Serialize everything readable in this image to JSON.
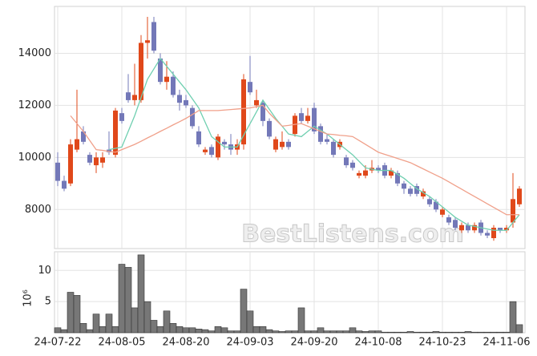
{
  "chart_data": {
    "type": "candlestick",
    "categories": [
      "24-07-22",
      null,
      null,
      null,
      null,
      null,
      null,
      null,
      null,
      null,
      "24-08-05",
      null,
      null,
      null,
      null,
      null,
      null,
      null,
      null,
      null,
      "24-08-20",
      null,
      null,
      null,
      null,
      null,
      null,
      null,
      null,
      null,
      "24-09-03",
      null,
      null,
      null,
      null,
      null,
      null,
      null,
      null,
      null,
      "24-09-20",
      null,
      null,
      null,
      null,
      null,
      null,
      null,
      null,
      null,
      "24-10-08",
      null,
      null,
      null,
      null,
      null,
      null,
      null,
      null,
      null,
      "24-10-23",
      null,
      null,
      null,
      null,
      null,
      null,
      null,
      null,
      null,
      "24-11-06",
      null,
      null
    ],
    "open": [
      9800,
      9100,
      9000,
      10300,
      11000,
      10100,
      9700,
      9800,
      10300,
      10100,
      11700,
      12500,
      12200,
      12200,
      14400,
      15200,
      13800,
      12900,
      13100,
      12400,
      12200,
      11900,
      11000,
      10200,
      10400,
      10000,
      10600,
      10500,
      10300,
      10500,
      12900,
      12000,
      12100,
      11400,
      10300,
      10400,
      10600,
      10900,
      11700,
      11400,
      11900,
      11200,
      10700,
      10600,
      10400,
      10000,
      9800,
      9300,
      9300,
      9500,
      9600,
      9700,
      9300,
      9400,
      9000,
      8800,
      8900,
      8500,
      8400,
      8300,
      7800,
      7700,
      7600,
      7200,
      7400,
      7200,
      7500,
      7100,
      6900,
      7300,
      7200,
      7500,
      8200
    ],
    "high": [
      10200,
      9300,
      10700,
      12600,
      11200,
      10200,
      10200,
      10200,
      11000,
      11900,
      11900,
      13200,
      13600,
      14700,
      15400,
      15400,
      14000,
      13700,
      13300,
      12600,
      12400,
      12000,
      11200,
      10400,
      10500,
      10900,
      10700,
      10900,
      10700,
      13200,
      13900,
      12600,
      12200,
      11500,
      10800,
      11000,
      10700,
      11700,
      11900,
      11900,
      12100,
      11300,
      10900,
      10700,
      10700,
      10100,
      9900,
      9500,
      9700,
      9900,
      9700,
      9800,
      9600,
      9500,
      9100,
      8900,
      9000,
      8800,
      8500,
      8400,
      8100,
      7800,
      7700,
      7500,
      7500,
      7500,
      7600,
      7200,
      7400,
      7300,
      7400,
      9400,
      8900
    ],
    "low": [
      8900,
      8700,
      8900,
      10200,
      10500,
      9700,
      9400,
      9600,
      10100,
      10000,
      11300,
      12100,
      12000,
      12100,
      13800,
      14000,
      12800,
      12600,
      12300,
      11800,
      11900,
      11100,
      10400,
      10100,
      10000,
      9900,
      10300,
      10100,
      10100,
      10300,
      12400,
      11900,
      11200,
      10700,
      10200,
      10300,
      10300,
      10800,
      11300,
      11300,
      10900,
      10500,
      10500,
      10000,
      10300,
      9600,
      9500,
      9200,
      9200,
      9400,
      9400,
      9200,
      9200,
      8900,
      8600,
      8500,
      8500,
      8400,
      8100,
      7900,
      7700,
      7400,
      7200,
      7100,
      7100,
      7100,
      7000,
      6900,
      6800,
      7100,
      7100,
      7300,
      8100
    ],
    "close": [
      9100,
      8800,
      10500,
      10700,
      10600,
      9800,
      10000,
      10000,
      10200,
      11800,
      11400,
      12200,
      12400,
      14400,
      14500,
      14100,
      12900,
      13100,
      12400,
      12100,
      12000,
      11200,
      10500,
      10300,
      10100,
      10800,
      10500,
      10300,
      10500,
      13000,
      12500,
      12200,
      11400,
      10800,
      10700,
      10600,
      10400,
      11600,
      11400,
      11600,
      11000,
      10600,
      10600,
      10100,
      10600,
      9700,
      9600,
      9400,
      9500,
      9600,
      9500,
      9300,
      9500,
      9000,
      8800,
      8600,
      8600,
      8700,
      8200,
      8000,
      8000,
      7500,
      7300,
      7400,
      7200,
      7400,
      7100,
      7000,
      7300,
      7200,
      7300,
      8400,
      8800
    ],
    "up_color": "#e0481a",
    "down_color": "#7378b8",
    "lines": [
      {
        "color": "#6fcfb0",
        "values": [
          null,
          null,
          null,
          null,
          null,
          null,
          null,
          null,
          10300,
          10350,
          10400,
          11000,
          11600,
          12300,
          13000,
          13400,
          13800,
          13500,
          13200,
          12900,
          12600,
          12250,
          11900,
          11350,
          10800,
          10600,
          10400,
          10400,
          10400,
          10850,
          11300,
          11750,
          12200,
          11850,
          11500,
          11200,
          10900,
          10850,
          10800,
          11000,
          11200,
          11050,
          10900,
          10700,
          10500,
          10300,
          10100,
          9850,
          9600,
          9550,
          9500,
          9500,
          9500,
          9350,
          9200,
          9000,
          8800,
          8650,
          8500,
          8300,
          8100,
          7900,
          7700,
          7550,
          7400,
          7350,
          7300,
          7250,
          7200,
          7200,
          7200,
          7500,
          7800
        ]
      },
      {
        "color": "#f0a08a",
        "values": [
          null,
          null,
          11600,
          11300,
          11000,
          10650,
          10300,
          10270,
          10230,
          10200,
          10300,
          10400,
          10500,
          10620,
          10750,
          10870,
          11000,
          11120,
          11250,
          11370,
          11500,
          11650,
          11800,
          11800,
          11800,
          11800,
          11820,
          11840,
          11860,
          11880,
          11900,
          11950,
          12000,
          11700,
          11450,
          11200,
          11230,
          11270,
          11300,
          11200,
          11100,
          11000,
          10900,
          10880,
          10850,
          10830,
          10800,
          10650,
          10500,
          10350,
          10200,
          10120,
          10040,
          9960,
          9880,
          9800,
          9680,
          9560,
          9440,
          9320,
          9200,
          9060,
          8920,
          8780,
          8640,
          8500,
          8360,
          8220,
          8080,
          7940,
          7800,
          7800,
          7800
        ]
      }
    ],
    "ylim": [
      6500,
      15800
    ],
    "yticks": [
      8000,
      10000,
      12000,
      14000
    ],
    "grid": true,
    "watermark": "BestListens.com",
    "volume": {
      "color": "#777777",
      "values": [
        0.8,
        0.5,
        6.5,
        6,
        1.5,
        0.5,
        3,
        1,
        3,
        1,
        11,
        10.5,
        4,
        12.5,
        5,
        2,
        1,
        3.5,
        1.5,
        1,
        0.8,
        0.8,
        0.6,
        0.5,
        0.3,
        1,
        0.8,
        0.3,
        0.3,
        7,
        3.5,
        1,
        1,
        0.5,
        0.3,
        0.2,
        0.3,
        0.3,
        4,
        0.3,
        0.3,
        0.8,
        0.3,
        0.3,
        0.3,
        0.3,
        0.8,
        0.3,
        0.2,
        0.3,
        0.3,
        0.1,
        0.1,
        0.1,
        0.1,
        0.2,
        0.1,
        0.1,
        0.1,
        0.2,
        0.1,
        0.1,
        0.1,
        0.1,
        0.2,
        0.1,
        0.1,
        0.1,
        0.1,
        0.1,
        0.1,
        5,
        1.3
      ],
      "ylim": [
        0,
        13
      ],
      "yticks": [
        5,
        10
      ],
      "offset_label": "10⁶"
    }
  }
}
